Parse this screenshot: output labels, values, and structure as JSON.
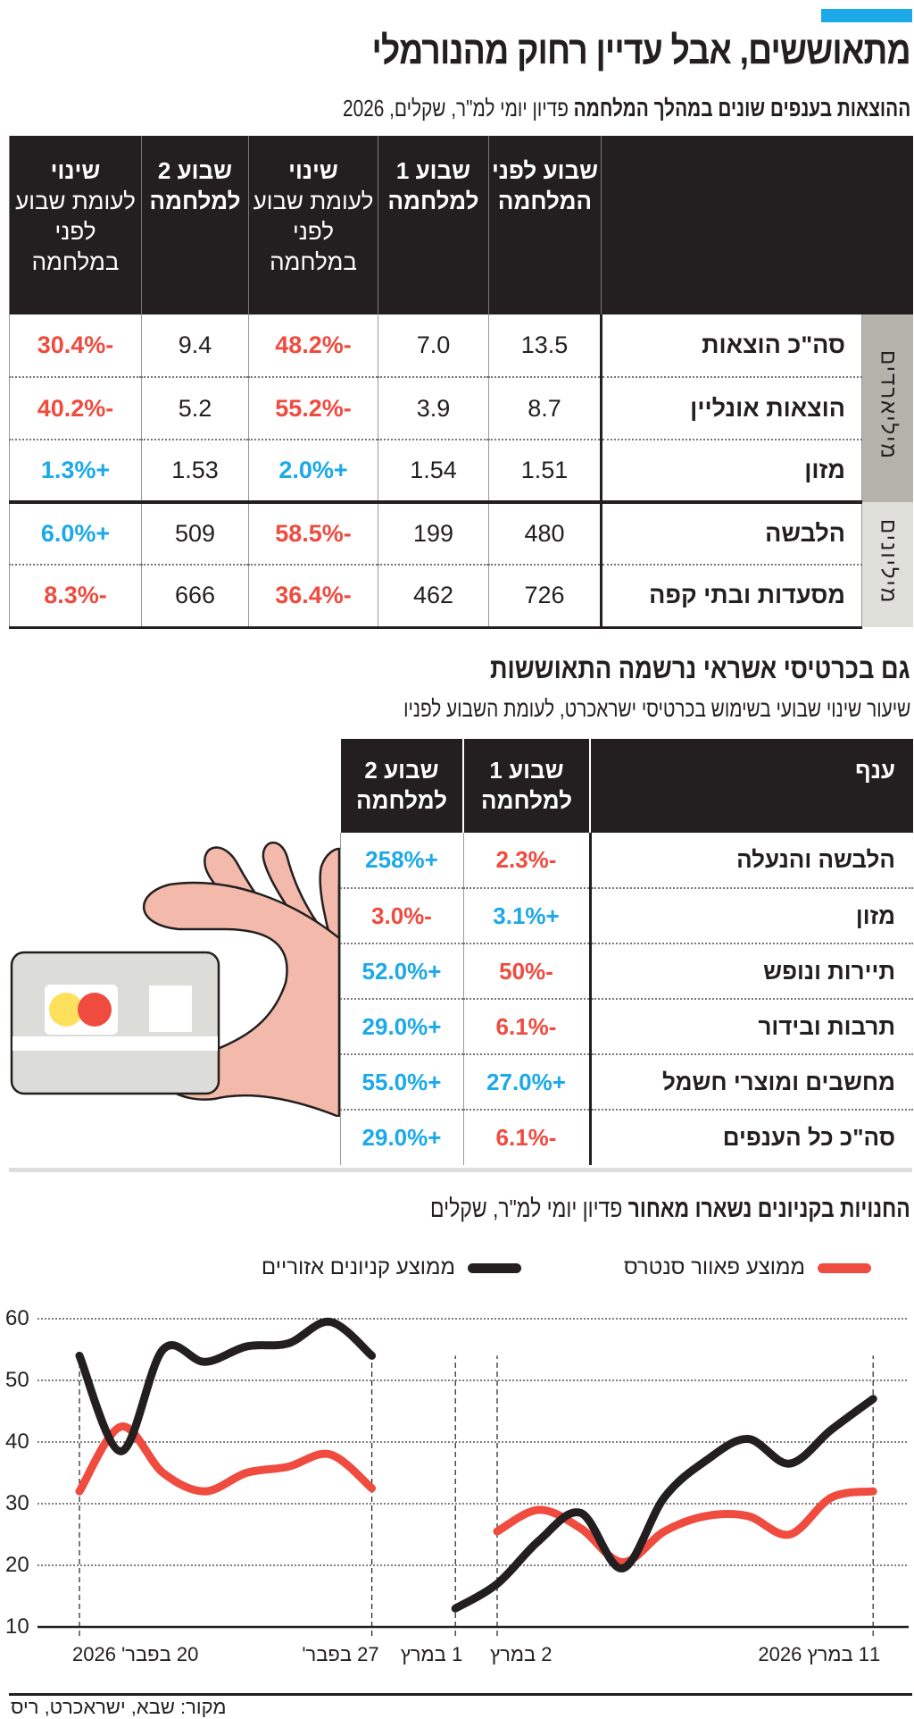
{
  "header": {
    "title": "מתאוששים, אבל עדיין רחוק מהנורמלי",
    "subtitle_bold": "ההוצאות בענפים שונים במהלך המלחמה",
    "subtitle_rest": " פדיון יומי למ\"ר, שקלים, 2026",
    "accent_color": "#1ba9e8"
  },
  "table1": {
    "headers": [
      {
        "bold": "שבוע לפני המלחמה",
        "normal": ""
      },
      {
        "bold": "שבוע 1 למלחמה",
        "normal": ""
      },
      {
        "bold": "שינוי",
        "normal": "לעומת שבוע לפני במלחמה"
      },
      {
        "bold": "שבוע 2 למלחמה",
        "normal": ""
      },
      {
        "bold": "שינוי",
        "normal": "לעומת שבוע לפני במלחמה"
      }
    ],
    "groups": [
      {
        "label": "מיליארדים",
        "color": "#b5b4ac",
        "rows": [
          {
            "label": "סה\"כ הוצאות",
            "before": "13.5",
            "w1": "7.0",
            "ch1": "-48.2%",
            "w2": "9.4",
            "ch2": "-30.4%"
          },
          {
            "label": "הוצאות אונליין",
            "before": "8.7",
            "w1": "3.9",
            "ch1": "-55.2%",
            "w2": "5.2",
            "ch2": "-40.2%"
          },
          {
            "label": "מזון",
            "before": "1.51",
            "w1": "1.54",
            "ch1": "+2.0%",
            "w2": "1.53",
            "ch2": "+1.3%"
          }
        ]
      },
      {
        "label": "מיליונים",
        "color": "#e0e0da",
        "rows": [
          {
            "label": "הלבשה",
            "before": "480",
            "w1": "199",
            "ch1": "-58.5%",
            "w2": "509",
            "ch2": "+6.0%"
          },
          {
            "label": "מסעדות ובתי קפה",
            "before": "726",
            "w1": "462",
            "ch1": "-36.4%",
            "w2": "666",
            "ch2": "-8.3%"
          }
        ]
      }
    ]
  },
  "section2": {
    "title": "גם בכרטיסי אשראי נרשמה התאוששות",
    "subtitle": "שיעור שינוי שבועי בשימוש בכרטיסי ישראכרט, לעומת השבוע לפניו",
    "headers": {
      "branch": "ענף",
      "w1": "שבוע 1 למלחמה",
      "w2": "שבוע 2 למלחמה"
    },
    "rows": [
      {
        "label": "הלבשה והנעלה",
        "w1": "-2.3%",
        "w2": "+258%"
      },
      {
        "label": "מזון",
        "w1": "+3.1%",
        "w2": "-3.0%"
      },
      {
        "label": "תיירות ונופש",
        "w1": "-50%",
        "w2": "+52.0%"
      },
      {
        "label": "תרבות ובידור",
        "w1": "-6.1%",
        "w2": "+29.0%"
      },
      {
        "label": "מחשבים ומוצרי חשמל",
        "w1": "+27.0%",
        "w2": "+55.0%"
      },
      {
        "label": "סה\"כ כל הענפים",
        "w1": "-6.1%",
        "w2": "+29.0%"
      }
    ]
  },
  "colors": {
    "negative": "#ef4b3f",
    "positive": "#1ba9e8"
  },
  "chart_data": {
    "type": "line",
    "title_bold": "החנויות בקניונים נשארו מאחור",
    "title_rest": " פדיון יומי למ\"ר, שקלים",
    "ylim": [
      10,
      60
    ],
    "yticks": [
      10,
      20,
      30,
      40,
      50,
      60
    ],
    "grid": true,
    "legend": "top",
    "xticks": [
      {
        "date": "2026-02-20",
        "label": "20 בפבר' 2026"
      },
      {
        "date": "2026-02-27",
        "label": "27 בפבר'"
      },
      {
        "date": "2026-03-01",
        "label": "1 במרץ"
      },
      {
        "date": "2026-03-02",
        "label": "2 במרץ"
      },
      {
        "date": "2026-03-11",
        "label": "11 במרץ 2026"
      }
    ],
    "series": [
      {
        "name": "ממוצע פאוור סנטרס",
        "color": "#ef4b3f",
        "segments": [
          {
            "x": [
              "2026-02-20",
              "2026-02-21",
              "2026-02-22",
              "2026-02-23",
              "2026-02-24",
              "2026-02-25",
              "2026-02-26",
              "2026-02-27"
            ],
            "y": [
              32,
              42.5,
              35,
              32,
              35,
              36,
              38,
              32.5
            ]
          },
          {
            "x": [
              "2026-03-02",
              "2026-03-03",
              "2026-03-04",
              "2026-03-05",
              "2026-03-06",
              "2026-03-07",
              "2026-03-08",
              "2026-03-09",
              "2026-03-10",
              "2026-03-11"
            ],
            "y": [
              25.5,
              29,
              26,
              20.5,
              25.5,
              28,
              28,
              25,
              31,
              32
            ]
          }
        ]
      },
      {
        "name": "ממוצע קניונים אזוריים",
        "color": "#231f20",
        "segments": [
          {
            "x": [
              "2026-02-20",
              "2026-02-21",
              "2026-02-22",
              "2026-02-23",
              "2026-02-24",
              "2026-02-25",
              "2026-02-26",
              "2026-02-27"
            ],
            "y": [
              54,
              38.5,
              55,
              53,
              55.5,
              56,
              59.5,
              54
            ]
          },
          {
            "x": [
              "2026-03-01",
              "2026-03-02",
              "2026-03-03",
              "2026-03-04",
              "2026-03-05",
              "2026-03-06",
              "2026-03-07",
              "2026-03-08",
              "2026-03-09",
              "2026-03-10",
              "2026-03-11"
            ],
            "y": [
              13,
              17,
              24,
              28.5,
              19.5,
              31,
              37,
              40.5,
              36.5,
              42,
              47
            ]
          }
        ]
      }
    ]
  },
  "footer": {
    "source": "מקור: שבא, ישראכרט, ריס"
  }
}
